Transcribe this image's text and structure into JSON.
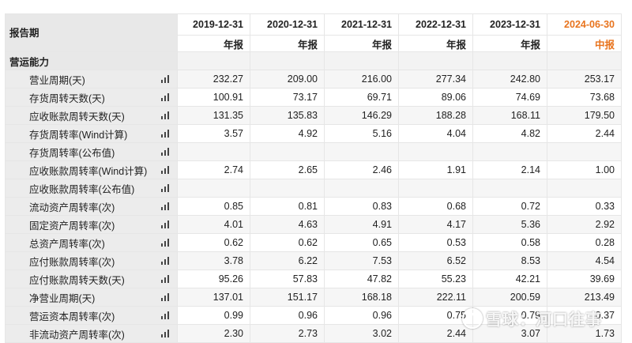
{
  "table": {
    "corner_label": "报告期",
    "periods": [
      {
        "date": "2019-12-31",
        "type": "年报",
        "highlight": false
      },
      {
        "date": "2020-12-31",
        "type": "年报",
        "highlight": false
      },
      {
        "date": "2021-12-31",
        "type": "年报",
        "highlight": false
      },
      {
        "date": "2022-12-31",
        "type": "年报",
        "highlight": false
      },
      {
        "date": "2023-12-31",
        "type": "年报",
        "highlight": false
      },
      {
        "date": "2024-06-30",
        "type": "中报",
        "highlight": true
      }
    ],
    "section_label": "营运能力",
    "rows": [
      {
        "label": "营业周期(天)",
        "values": [
          "232.27",
          "209.00",
          "216.00",
          "277.34",
          "242.80",
          "253.17"
        ]
      },
      {
        "label": "存货周转天数(天)",
        "values": [
          "100.91",
          "73.17",
          "69.71",
          "89.06",
          "74.69",
          "73.68"
        ]
      },
      {
        "label": "应收账款周转天数(天)",
        "values": [
          "131.35",
          "135.83",
          "146.29",
          "188.28",
          "168.11",
          "179.50"
        ]
      },
      {
        "label": "存货周转率(Wind计算)",
        "values": [
          "3.57",
          "4.92",
          "5.16",
          "4.04",
          "4.82",
          "2.44"
        ]
      },
      {
        "label": "存货周转率(公布值)",
        "values": [
          "",
          "",
          "",
          "",
          "",
          ""
        ]
      },
      {
        "label": "应收账款周转率(Wind计算)",
        "values": [
          "2.74",
          "2.65",
          "2.46",
          "1.91",
          "2.14",
          "1.00"
        ]
      },
      {
        "label": "应收账款周转率(公布值)",
        "values": [
          "",
          "",
          "",
          "",
          "",
          ""
        ]
      },
      {
        "label": "流动资产周转率(次)",
        "values": [
          "0.85",
          "0.81",
          "0.83",
          "0.68",
          "0.72",
          "0.33"
        ]
      },
      {
        "label": "固定资产周转率(次)",
        "values": [
          "4.01",
          "4.63",
          "4.91",
          "4.17",
          "5.36",
          "2.92"
        ]
      },
      {
        "label": "总资产周转率(次)",
        "values": [
          "0.62",
          "0.62",
          "0.65",
          "0.53",
          "0.58",
          "0.28"
        ]
      },
      {
        "label": "应付账款周转率(次)",
        "values": [
          "3.78",
          "6.22",
          "7.53",
          "6.52",
          "8.53",
          "4.54"
        ]
      },
      {
        "label": "应付账款周转天数(天)",
        "values": [
          "95.26",
          "57.83",
          "47.82",
          "55.23",
          "42.21",
          "39.69"
        ]
      },
      {
        "label": "净营业周期(天)",
        "values": [
          "137.01",
          "151.17",
          "168.18",
          "222.11",
          "200.59",
          "213.49"
        ]
      },
      {
        "label": "营运资本周转率(次)",
        "values": [
          "0.99",
          "0.96",
          "0.96",
          "0.75",
          "0.79",
          "0.37"
        ]
      },
      {
        "label": "非流动资产周转率(次)",
        "values": [
          "2.30",
          "2.73",
          "3.02",
          "2.44",
          "3.07",
          "1.73"
        ]
      }
    ]
  },
  "watermark": {
    "text": "雪球：河口往事"
  },
  "icons": {
    "row_chart": "bar-chart-icon",
    "watermark_logo": "snowball-logo"
  },
  "colors": {
    "highlight_period": "#e8741e",
    "label_column_bg": "#ececec"
  }
}
